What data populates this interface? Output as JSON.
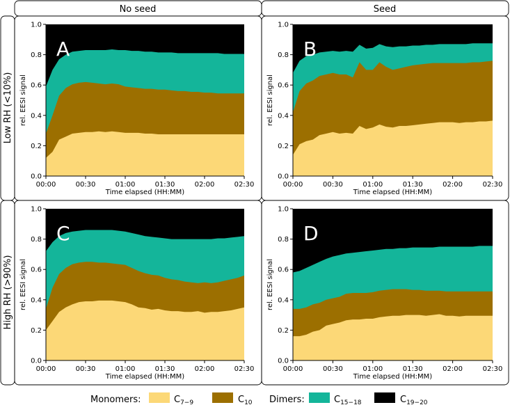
{
  "columns": [
    "No seed",
    "Seed"
  ],
  "rows": [
    "Low RH (<10%)",
    "High RH (>90%)"
  ],
  "colors": {
    "c7_9": "#fcd877",
    "c10": "#9c6f00",
    "c15_18": "#14b59a",
    "c19_20": "#000000"
  },
  "legend": {
    "monomers_label": "Monomers:",
    "dimers_label": "Dimers:",
    "items": [
      {
        "key": "c7_9",
        "base": "C",
        "sub": "7−9"
      },
      {
        "key": "c10",
        "base": "C",
        "sub": "10"
      },
      {
        "key": "c15_18",
        "base": "C",
        "sub": "15−18"
      },
      {
        "key": "c19_20",
        "base": "C",
        "sub": "19−20"
      }
    ]
  },
  "chart_data": [
    {
      "type": "area",
      "panel": "A",
      "xlabel": "Time elapsed (HH:MM)",
      "ylabel": "rel. EESI signal",
      "xlim": [
        0,
        150
      ],
      "ylim": [
        0,
        1.0
      ],
      "xticks": [
        0,
        30,
        60,
        90,
        120,
        150
      ],
      "xticklabels": [
        "00:00",
        "00:30",
        "01:00",
        "01:30",
        "02:00",
        "02:30"
      ],
      "yticks": [
        0,
        0.2,
        0.4,
        0.6,
        0.8,
        1.0
      ],
      "yticklabels": [
        "0.0",
        "0.2",
        "0.4",
        "0.6",
        "0.8",
        "1.0"
      ],
      "stacked": true,
      "x": [
        0,
        5,
        10,
        15,
        20,
        25,
        30,
        35,
        40,
        45,
        50,
        55,
        60,
        65,
        70,
        75,
        80,
        85,
        90,
        95,
        100,
        105,
        110,
        115,
        120,
        125,
        130,
        135,
        140,
        145,
        150
      ],
      "series": [
        {
          "name": "C7-9",
          "values": [
            0.12,
            0.16,
            0.24,
            0.26,
            0.28,
            0.285,
            0.29,
            0.29,
            0.295,
            0.29,
            0.295,
            0.29,
            0.285,
            0.285,
            0.285,
            0.28,
            0.28,
            0.275,
            0.275,
            0.275,
            0.275,
            0.275,
            0.275,
            0.275,
            0.275,
            0.275,
            0.275,
            0.275,
            0.275,
            0.275,
            0.275
          ]
        },
        {
          "name": "C10",
          "values": [
            0.28,
            0.4,
            0.53,
            0.58,
            0.605,
            0.615,
            0.62,
            0.615,
            0.61,
            0.605,
            0.61,
            0.605,
            0.59,
            0.585,
            0.58,
            0.575,
            0.575,
            0.57,
            0.57,
            0.565,
            0.56,
            0.56,
            0.555,
            0.555,
            0.55,
            0.55,
            0.545,
            0.545,
            0.545,
            0.545,
            0.545
          ]
        },
        {
          "name": "C15-18",
          "values": [
            0.59,
            0.7,
            0.77,
            0.8,
            0.82,
            0.825,
            0.83,
            0.83,
            0.83,
            0.83,
            0.835,
            0.83,
            0.83,
            0.825,
            0.825,
            0.82,
            0.82,
            0.815,
            0.815,
            0.815,
            0.81,
            0.81,
            0.81,
            0.81,
            0.81,
            0.81,
            0.81,
            0.805,
            0.805,
            0.805,
            0.805
          ]
        },
        {
          "name": "C19-20",
          "values": [
            1,
            1,
            1,
            1,
            1,
            1,
            1,
            1,
            1,
            1,
            1,
            1,
            1,
            1,
            1,
            1,
            1,
            1,
            1,
            1,
            1,
            1,
            1,
            1,
            1,
            1,
            1,
            1,
            1,
            1,
            1
          ]
        }
      ]
    },
    {
      "type": "area",
      "panel": "B",
      "xlabel": "Time elapsed (HH:MM)",
      "ylabel": "rel. EESI signal",
      "xlim": [
        0,
        150
      ],
      "ylim": [
        0,
        1.0
      ],
      "xticks": [
        0,
        30,
        60,
        90,
        120,
        150
      ],
      "xticklabels": [
        "00:00",
        "00:30",
        "01:00",
        "01:30",
        "02:00",
        "02:30"
      ],
      "yticks": [
        0,
        0.2,
        0.4,
        0.6,
        0.8,
        1.0
      ],
      "yticklabels": [
        "0.0",
        "0.2",
        "0.4",
        "0.6",
        "0.8",
        "1.0"
      ],
      "stacked": true,
      "x": [
        0,
        5,
        10,
        15,
        20,
        25,
        30,
        35,
        40,
        45,
        50,
        55,
        60,
        65,
        70,
        75,
        80,
        85,
        90,
        95,
        100,
        105,
        110,
        115,
        120,
        125,
        130,
        135,
        140,
        145,
        150
      ],
      "series": [
        {
          "name": "C7-9",
          "values": [
            0.14,
            0.21,
            0.23,
            0.24,
            0.27,
            0.28,
            0.29,
            0.28,
            0.285,
            0.28,
            0.33,
            0.31,
            0.32,
            0.34,
            0.325,
            0.32,
            0.33,
            0.33,
            0.335,
            0.34,
            0.345,
            0.35,
            0.355,
            0.355,
            0.355,
            0.35,
            0.355,
            0.355,
            0.36,
            0.36,
            0.365
          ]
        },
        {
          "name": "C10",
          "values": [
            0.42,
            0.56,
            0.61,
            0.63,
            0.66,
            0.67,
            0.68,
            0.67,
            0.67,
            0.65,
            0.75,
            0.7,
            0.7,
            0.75,
            0.72,
            0.7,
            0.71,
            0.72,
            0.73,
            0.735,
            0.74,
            0.745,
            0.745,
            0.745,
            0.745,
            0.745,
            0.745,
            0.75,
            0.75,
            0.755,
            0.76
          ]
        },
        {
          "name": "C15-18",
          "values": [
            0.68,
            0.76,
            0.79,
            0.8,
            0.815,
            0.82,
            0.825,
            0.82,
            0.825,
            0.82,
            0.865,
            0.84,
            0.845,
            0.87,
            0.855,
            0.85,
            0.855,
            0.855,
            0.86,
            0.86,
            0.865,
            0.865,
            0.87,
            0.87,
            0.87,
            0.87,
            0.87,
            0.875,
            0.875,
            0.875,
            0.875
          ]
        },
        {
          "name": "C19-20",
          "values": [
            1,
            1,
            1,
            1,
            1,
            1,
            1,
            1,
            1,
            1,
            1,
            1,
            1,
            1,
            1,
            1,
            1,
            1,
            1,
            1,
            1,
            1,
            1,
            1,
            1,
            1,
            1,
            1,
            1,
            1,
            1
          ]
        }
      ]
    },
    {
      "type": "area",
      "panel": "C",
      "xlabel": "Time elapsed (HH:MM)",
      "ylabel": "rel. EESI signal",
      "xlim": [
        0,
        150
      ],
      "ylim": [
        0,
        1.0
      ],
      "xticks": [
        0,
        30,
        60,
        90,
        120,
        150
      ],
      "xticklabels": [
        "00:00",
        "00:30",
        "01:00",
        "01:30",
        "02:00",
        "02:30"
      ],
      "yticks": [
        0,
        0.2,
        0.4,
        0.6,
        0.8,
        1.0
      ],
      "yticklabels": [
        "0.0",
        "0.2",
        "0.4",
        "0.6",
        "0.8",
        "1.0"
      ],
      "stacked": true,
      "x": [
        0,
        5,
        10,
        15,
        20,
        25,
        30,
        35,
        40,
        45,
        50,
        55,
        60,
        65,
        70,
        75,
        80,
        85,
        90,
        95,
        100,
        105,
        110,
        115,
        120,
        125,
        130,
        135,
        140,
        145,
        150
      ],
      "series": [
        {
          "name": "C7-9",
          "values": [
            0.2,
            0.26,
            0.32,
            0.35,
            0.37,
            0.385,
            0.39,
            0.39,
            0.395,
            0.395,
            0.395,
            0.39,
            0.385,
            0.37,
            0.35,
            0.345,
            0.335,
            0.34,
            0.33,
            0.325,
            0.325,
            0.32,
            0.32,
            0.325,
            0.315,
            0.32,
            0.32,
            0.325,
            0.33,
            0.34,
            0.35
          ]
        },
        {
          "name": "C10",
          "values": [
            0.34,
            0.48,
            0.57,
            0.61,
            0.635,
            0.645,
            0.65,
            0.65,
            0.645,
            0.645,
            0.64,
            0.635,
            0.63,
            0.61,
            0.59,
            0.575,
            0.565,
            0.56,
            0.545,
            0.535,
            0.53,
            0.52,
            0.515,
            0.51,
            0.515,
            0.51,
            0.515,
            0.525,
            0.535,
            0.545,
            0.56
          ]
        },
        {
          "name": "C15-18",
          "values": [
            0.72,
            0.78,
            0.82,
            0.84,
            0.85,
            0.855,
            0.86,
            0.86,
            0.86,
            0.86,
            0.86,
            0.855,
            0.85,
            0.84,
            0.83,
            0.82,
            0.815,
            0.81,
            0.805,
            0.8,
            0.8,
            0.8,
            0.8,
            0.8,
            0.8,
            0.8,
            0.805,
            0.805,
            0.81,
            0.815,
            0.82
          ]
        },
        {
          "name": "C19-20",
          "values": [
            1,
            1,
            1,
            1,
            1,
            1,
            1,
            1,
            1,
            1,
            1,
            1,
            1,
            1,
            1,
            1,
            1,
            1,
            1,
            1,
            1,
            1,
            1,
            1,
            1,
            1,
            1,
            1,
            1,
            1,
            1
          ]
        }
      ]
    },
    {
      "type": "area",
      "panel": "D",
      "xlabel": "Time elapsed (HH:MM)",
      "ylabel": "rel. EESI signal",
      "xlim": [
        0,
        150
      ],
      "ylim": [
        0,
        1.0
      ],
      "xticks": [
        0,
        30,
        60,
        90,
        120,
        150
      ],
      "xticklabels": [
        "00:00",
        "00:30",
        "01:00",
        "01:30",
        "02:00",
        "02:30"
      ],
      "yticks": [
        0,
        0.2,
        0.4,
        0.6,
        0.8,
        1.0
      ],
      "yticklabels": [
        "0.0",
        "0.2",
        "0.4",
        "0.6",
        "0.8",
        "1.0"
      ],
      "stacked": true,
      "x": [
        0,
        5,
        10,
        15,
        20,
        25,
        30,
        35,
        40,
        45,
        50,
        55,
        60,
        65,
        70,
        75,
        80,
        85,
        90,
        95,
        100,
        105,
        110,
        115,
        120,
        125,
        130,
        135,
        140,
        145,
        150
      ],
      "series": [
        {
          "name": "C7-9",
          "values": [
            0.16,
            0.16,
            0.17,
            0.19,
            0.2,
            0.23,
            0.24,
            0.25,
            0.265,
            0.27,
            0.27,
            0.275,
            0.275,
            0.285,
            0.29,
            0.295,
            0.295,
            0.3,
            0.3,
            0.3,
            0.295,
            0.3,
            0.305,
            0.295,
            0.295,
            0.29,
            0.295,
            0.295,
            0.295,
            0.295,
            0.295
          ]
        },
        {
          "name": "C10",
          "values": [
            0.34,
            0.34,
            0.35,
            0.37,
            0.38,
            0.4,
            0.41,
            0.42,
            0.44,
            0.445,
            0.445,
            0.445,
            0.45,
            0.46,
            0.465,
            0.47,
            0.47,
            0.47,
            0.465,
            0.465,
            0.46,
            0.46,
            0.46,
            0.455,
            0.455,
            0.455,
            0.455,
            0.455,
            0.455,
            0.455,
            0.455
          ]
        },
        {
          "name": "C15-18",
          "values": [
            0.58,
            0.59,
            0.61,
            0.63,
            0.65,
            0.67,
            0.685,
            0.695,
            0.705,
            0.71,
            0.715,
            0.72,
            0.725,
            0.73,
            0.735,
            0.735,
            0.74,
            0.74,
            0.745,
            0.745,
            0.745,
            0.745,
            0.75,
            0.75,
            0.75,
            0.75,
            0.75,
            0.75,
            0.755,
            0.755,
            0.755
          ]
        },
        {
          "name": "C19-20",
          "values": [
            1,
            1,
            1,
            1,
            1,
            1,
            1,
            1,
            1,
            1,
            1,
            1,
            1,
            1,
            1,
            1,
            1,
            1,
            1,
            1,
            1,
            1,
            1,
            1,
            1,
            1,
            1,
            1,
            1,
            1,
            1
          ]
        }
      ]
    }
  ]
}
